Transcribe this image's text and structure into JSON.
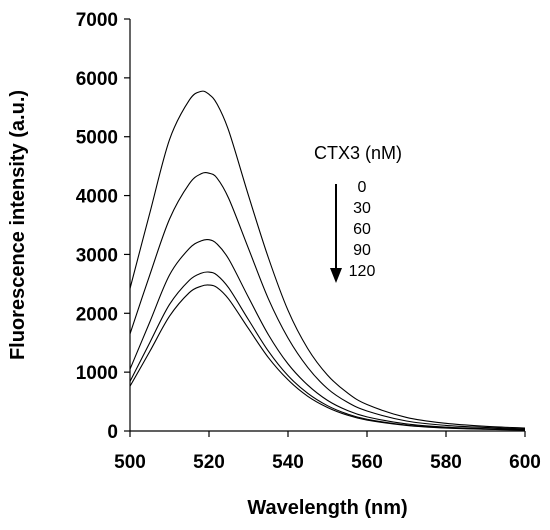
{
  "chart_data": {
    "type": "line",
    "title": "",
    "xlabel": "Wavelength (nm)",
    "ylabel": "Fluorescence intensity (a.u.)",
    "xlim": [
      500,
      600
    ],
    "ylim": [
      0,
      7000
    ],
    "xticks": [
      500,
      520,
      540,
      560,
      580,
      600
    ],
    "yticks": [
      0,
      1000,
      2000,
      3000,
      4000,
      5000,
      6000,
      7000
    ],
    "grid": false,
    "legend": {
      "title": "CTX3 (nM)",
      "entries": [
        "0",
        "30",
        "60",
        "90",
        "120"
      ],
      "arrow": "down",
      "placement": "top-right"
    },
    "x": [
      500,
      505,
      510,
      515,
      518,
      520,
      522,
      525,
      530,
      535,
      540,
      545,
      550,
      555,
      560,
      570,
      580,
      590,
      600
    ],
    "series": [
      {
        "label": "0",
        "values": [
          2420,
          3700,
          4950,
          5620,
          5770,
          5720,
          5560,
          5100,
          4000,
          2950,
          2050,
          1400,
          950,
          650,
          450,
          230,
          130,
          80,
          50
        ]
      },
      {
        "label": "30",
        "values": [
          1650,
          2650,
          3600,
          4200,
          4370,
          4380,
          4300,
          3950,
          3100,
          2250,
          1580,
          1080,
          720,
          490,
          340,
          170,
          95,
          60,
          35
        ]
      },
      {
        "label": "60",
        "values": [
          1050,
          1850,
          2650,
          3100,
          3230,
          3250,
          3180,
          2920,
          2270,
          1640,
          1140,
          780,
          520,
          350,
          240,
          120,
          65,
          40,
          25
        ]
      },
      {
        "label": "90",
        "values": [
          840,
          1500,
          2150,
          2560,
          2680,
          2700,
          2650,
          2430,
          1890,
          1360,
          940,
          640,
          430,
          290,
          200,
          100,
          55,
          32,
          20
        ]
      },
      {
        "label": "120",
        "values": [
          760,
          1350,
          1950,
          2350,
          2460,
          2480,
          2440,
          2240,
          1740,
          1250,
          870,
          590,
          400,
          270,
          185,
          95,
          50,
          30,
          18
        ]
      }
    ]
  }
}
